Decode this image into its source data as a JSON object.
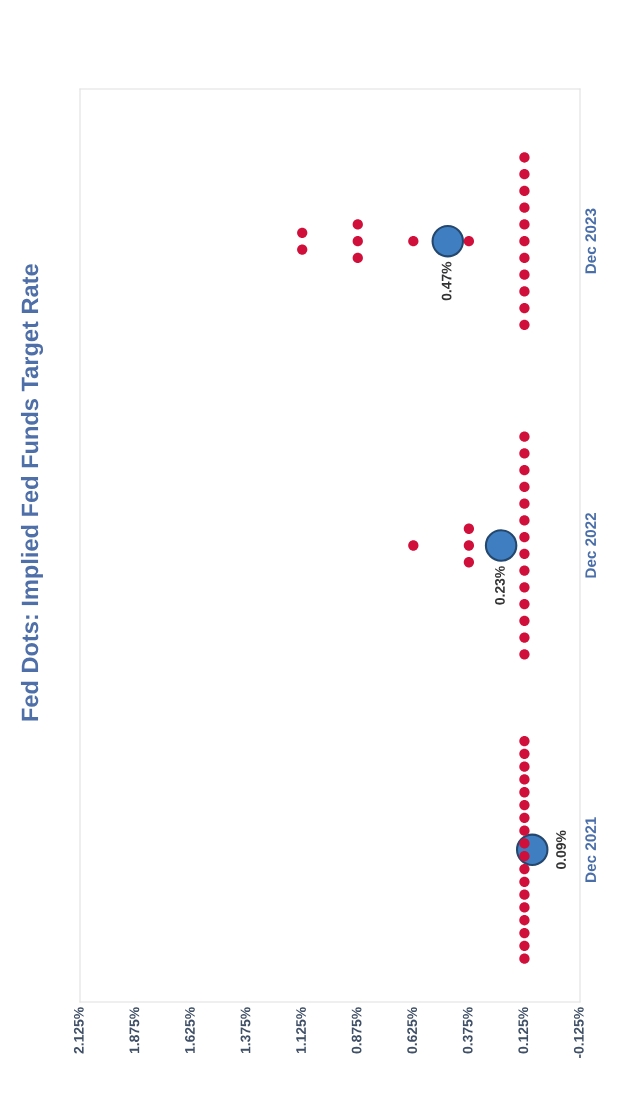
{
  "chart_data": {
    "type": "scatter",
    "title": "Fed Dots: Implied Fed Funds Target Rate",
    "orientation": "horizontal",
    "categories": [
      "Dec 2023",
      "Dec 2022",
      "Dec 2021"
    ],
    "series": [
      {
        "color": "#d0103a",
        "x": [
          "Dec 2023",
          "Dec 2023",
          "Dec 2023",
          "Dec 2023",
          "Dec 2023",
          "Dec 2023",
          "Dec 2023",
          "Dec 2023",
          "Dec 2023",
          "Dec 2023",
          "Dec 2023",
          "Dec 2023",
          "Dec 2023",
          "Dec 2023",
          "Dec 2023",
          "Dec 2023",
          "Dec 2023",
          "Dec 2023",
          "Dec 2022",
          "Dec 2022",
          "Dec 2022",
          "Dec 2022",
          "Dec 2022",
          "Dec 2022",
          "Dec 2022",
          "Dec 2022",
          "Dec 2022",
          "Dec 2022",
          "Dec 2022",
          "Dec 2022",
          "Dec 2022",
          "Dec 2022",
          "Dec 2022",
          "Dec 2022",
          "Dec 2022",
          "Dec 2022",
          "Dec 2021",
          "Dec 2021",
          "Dec 2021",
          "Dec 2021",
          "Dec 2021",
          "Dec 2021",
          "Dec 2021",
          "Dec 2021",
          "Dec 2021",
          "Dec 2021",
          "Dec 2021",
          "Dec 2021",
          "Dec 2021",
          "Dec 2021",
          "Dec 2021",
          "Dec 2021",
          "Dec 2021",
          "Dec 2021"
        ],
        "values": [
          1.125,
          1.125,
          0.875,
          0.875,
          0.875,
          0.625,
          0.375,
          0.125,
          0.125,
          0.125,
          0.125,
          0.125,
          0.125,
          0.125,
          0.125,
          0.125,
          0.125,
          0.125,
          0.625,
          0.375,
          0.375,
          0.375,
          0.125,
          0.125,
          0.125,
          0.125,
          0.125,
          0.125,
          0.125,
          0.125,
          0.125,
          0.125,
          0.125,
          0.125,
          0.125,
          0.125,
          0.125,
          0.125,
          0.125,
          0.125,
          0.125,
          0.125,
          0.125,
          0.125,
          0.125,
          0.125,
          0.125,
          0.125,
          0.125,
          0.125,
          0.125,
          0.125,
          0.125,
          0.125
        ]
      },
      {
        "color": "#3f7fc1",
        "x": [
          "Dec 2023",
          "Dec 2022",
          "Dec 2021"
        ],
        "values": [
          0.47,
          0.23,
          0.09
        ],
        "value_labels": [
          "0.47%",
          "0.23%",
          "0.09%"
        ]
      }
    ],
    "xlim": [
      2.125,
      -0.125
    ],
    "xticks": [
      {
        "value": 2.125,
        "label": "2.125%"
      },
      {
        "value": 1.875,
        "label": "1.875%"
      },
      {
        "value": 1.625,
        "label": "1.625%"
      },
      {
        "value": 1.375,
        "label": "1.375%"
      },
      {
        "value": 1.125,
        "label": "1.125%"
      },
      {
        "value": 0.875,
        "label": "0.875%"
      },
      {
        "value": 0.625,
        "label": "0.625%"
      },
      {
        "value": 0.375,
        "label": "0.375%"
      },
      {
        "value": 0.125,
        "label": "0.125%"
      },
      {
        "value": -0.125,
        "label": "-0.125%"
      }
    ],
    "grid": false,
    "legend": false,
    "marker": "circle"
  }
}
